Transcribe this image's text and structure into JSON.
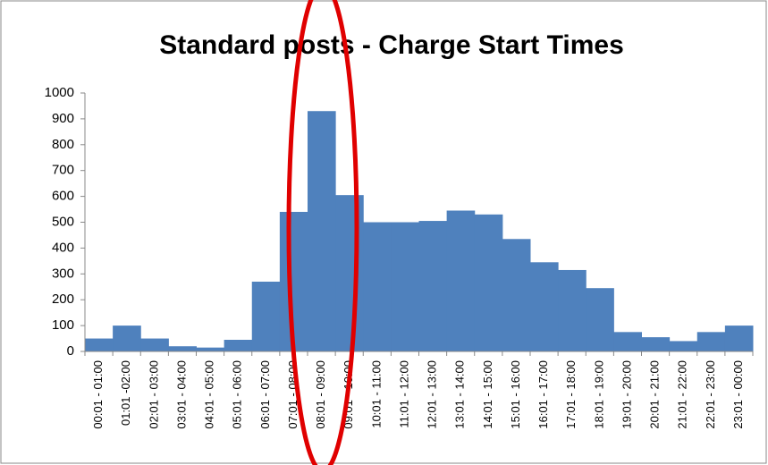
{
  "chart_data": {
    "type": "bar",
    "title": "Standard posts - Charge Start Times",
    "categories": [
      "00:01 - 01:00",
      "01:01 -02:00",
      "02:01 - 03:00",
      "03:01 - 04:00",
      "04:01 - 05:00",
      "05:01 - 06:00",
      "06:01 - 07:00",
      "07:01 - 08:00",
      "08:01 - 09:00",
      "09:01 - 10:00",
      "10:01 - 11:00",
      "11:01 - 12:00",
      "12:01 - 13:00",
      "13:01 - 14:00",
      "14:01 - 15:00",
      "15:01 - 16:00",
      "16:01 - 17:00",
      "17:01 - 18:00",
      "18:01 - 19:00",
      "19:01 - 20:00",
      "20:01 - 21:00",
      "21:01 - 22:00",
      "22:01 - 23:00",
      "23:01 - 00:00"
    ],
    "values": [
      50,
      100,
      50,
      20,
      15,
      45,
      270,
      540,
      930,
      605,
      500,
      500,
      505,
      545,
      530,
      435,
      345,
      315,
      245,
      75,
      55,
      40,
      75,
      100
    ],
    "color": "#4f81bd",
    "ylim": [
      0,
      1000
    ],
    "yticks": [
      0,
      100,
      200,
      300,
      400,
      500,
      600,
      700,
      800,
      900,
      1000
    ],
    "grid": false
  }
}
